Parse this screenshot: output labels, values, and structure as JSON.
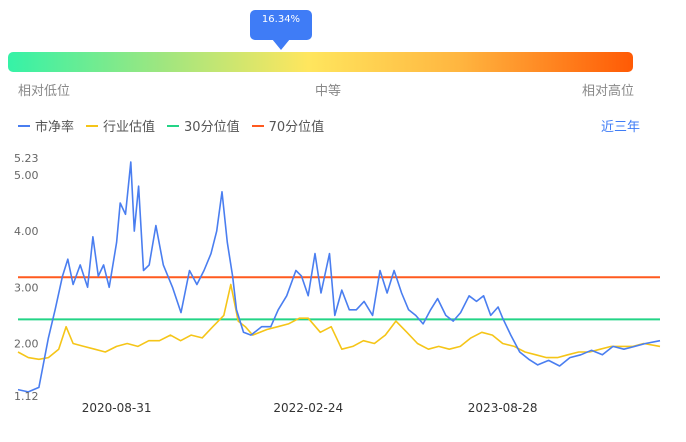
{
  "indicator": {
    "value_label": "16.34%",
    "percentile": 0.1634,
    "low_label": "相对低位",
    "mid_label": "中等",
    "high_label": "相对高位"
  },
  "legend": [
    {
      "label": "市净率",
      "color": "#4a7ef0"
    },
    {
      "label": "行业估值",
      "color": "#f5c518"
    },
    {
      "label": "30分位值",
      "color": "#23d486"
    },
    {
      "label": "70分位值",
      "color": "#ff5a1f"
    }
  ],
  "period_label": "近三年",
  "chart_data": {
    "type": "line",
    "title": "",
    "xlabel": "",
    "ylabel": "",
    "x_range": [
      "2019-11-26",
      "2024-11-15"
    ],
    "x_tick_labels": [
      "2020-08-31",
      "2022-02-24",
      "2023-08-28"
    ],
    "y_tick_labels": [
      "1.12",
      "2.00",
      "3.00",
      "4.00",
      "5.00",
      "5.23"
    ],
    "ylim": [
      1.12,
      5.23
    ],
    "grid": false,
    "series": [
      {
        "name": "市净率",
        "color": "#4a7ef0",
        "points": [
          [
            "2019-11-26",
            1.18
          ],
          [
            "2019-12-25",
            1.14
          ],
          [
            "2020-01-24",
            1.22
          ],
          [
            "2020-02-20",
            2.1
          ],
          [
            "2020-03-10",
            2.6
          ],
          [
            "2020-03-31",
            3.2
          ],
          [
            "2020-04-15",
            3.5
          ],
          [
            "2020-04-30",
            3.05
          ],
          [
            "2020-05-20",
            3.4
          ],
          [
            "2020-06-10",
            3.0
          ],
          [
            "2020-06-25",
            3.9
          ],
          [
            "2020-07-10",
            3.2
          ],
          [
            "2020-07-25",
            3.4
          ],
          [
            "2020-08-10",
            3.0
          ],
          [
            "2020-08-31",
            3.8
          ],
          [
            "2020-09-10",
            4.5
          ],
          [
            "2020-09-25",
            4.3
          ],
          [
            "2020-10-10",
            5.23
          ],
          [
            "2020-10-20",
            4.0
          ],
          [
            "2020-11-01",
            4.8
          ],
          [
            "2020-11-15",
            3.3
          ],
          [
            "2020-12-01",
            3.4
          ],
          [
            "2020-12-20",
            4.1
          ],
          [
            "2021-01-10",
            3.4
          ],
          [
            "2021-02-05",
            3.0
          ],
          [
            "2021-03-01",
            2.55
          ],
          [
            "2021-03-25",
            3.3
          ],
          [
            "2021-04-15",
            3.05
          ],
          [
            "2021-05-05",
            3.3
          ],
          [
            "2021-05-25",
            3.6
          ],
          [
            "2021-06-10",
            4.0
          ],
          [
            "2021-06-25",
            4.7
          ],
          [
            "2021-07-10",
            3.8
          ],
          [
            "2021-07-25",
            3.2
          ],
          [
            "2021-08-05",
            2.6
          ],
          [
            "2021-08-25",
            2.2
          ],
          [
            "2021-09-15",
            2.15
          ],
          [
            "2021-10-15",
            2.3
          ],
          [
            "2021-11-10",
            2.3
          ],
          [
            "2021-12-01",
            2.6
          ],
          [
            "2021-12-25",
            2.85
          ],
          [
            "2022-01-20",
            3.3
          ],
          [
            "2022-02-05",
            3.2
          ],
          [
            "2022-02-24",
            2.85
          ],
          [
            "2022-03-15",
            3.6
          ],
          [
            "2022-04-01",
            2.9
          ],
          [
            "2022-04-25",
            3.6
          ],
          [
            "2022-05-10",
            2.5
          ],
          [
            "2022-05-30",
            2.95
          ],
          [
            "2022-06-20",
            2.6
          ],
          [
            "2022-07-10",
            2.6
          ],
          [
            "2022-08-01",
            2.75
          ],
          [
            "2022-08-25",
            2.5
          ],
          [
            "2022-09-15",
            3.3
          ],
          [
            "2022-10-05",
            2.9
          ],
          [
            "2022-10-25",
            3.3
          ],
          [
            "2022-11-15",
            2.9
          ],
          [
            "2022-12-05",
            2.6
          ],
          [
            "2022-12-25",
            2.5
          ],
          [
            "2023-01-15",
            2.35
          ],
          [
            "2023-02-05",
            2.6
          ],
          [
            "2023-02-25",
            2.8
          ],
          [
            "2023-03-20",
            2.5
          ],
          [
            "2023-04-10",
            2.4
          ],
          [
            "2023-05-01",
            2.55
          ],
          [
            "2023-05-25",
            2.85
          ],
          [
            "2023-06-15",
            2.75
          ],
          [
            "2023-07-05",
            2.85
          ],
          [
            "2023-07-25",
            2.5
          ],
          [
            "2023-08-15",
            2.65
          ],
          [
            "2023-08-28",
            2.45
          ],
          [
            "2023-09-20",
            2.15
          ],
          [
            "2023-10-15",
            1.85
          ],
          [
            "2023-11-10",
            1.72
          ],
          [
            "2023-12-05",
            1.62
          ],
          [
            "2024-01-05",
            1.7
          ],
          [
            "2024-02-05",
            1.6
          ],
          [
            "2024-03-05",
            1.75
          ],
          [
            "2024-04-05",
            1.8
          ],
          [
            "2024-05-05",
            1.88
          ],
          [
            "2024-06-05",
            1.8
          ],
          [
            "2024-07-05",
            1.95
          ],
          [
            "2024-08-05",
            1.9
          ],
          [
            "2024-09-05",
            1.95
          ],
          [
            "2024-10-05",
            2.0
          ],
          [
            "2024-11-15",
            2.05
          ]
        ]
      },
      {
        "name": "行业估值",
        "color": "#f5c518",
        "points": [
          [
            "2019-11-26",
            1.85
          ],
          [
            "2019-12-25",
            1.75
          ],
          [
            "2020-01-24",
            1.72
          ],
          [
            "2020-02-20",
            1.75
          ],
          [
            "2020-03-20",
            1.9
          ],
          [
            "2020-04-10",
            2.3
          ],
          [
            "2020-04-30",
            2.0
          ],
          [
            "2020-05-30",
            1.95
          ],
          [
            "2020-06-30",
            1.9
          ],
          [
            "2020-07-30",
            1.85
          ],
          [
            "2020-08-31",
            1.95
          ],
          [
            "2020-09-30",
            2.0
          ],
          [
            "2020-10-30",
            1.95
          ],
          [
            "2020-11-30",
            2.05
          ],
          [
            "2020-12-30",
            2.05
          ],
          [
            "2021-01-30",
            2.15
          ],
          [
            "2021-02-28",
            2.05
          ],
          [
            "2021-03-30",
            2.15
          ],
          [
            "2021-04-30",
            2.1
          ],
          [
            "2021-05-30",
            2.3
          ],
          [
            "2021-06-30",
            2.5
          ],
          [
            "2021-07-20",
            3.05
          ],
          [
            "2021-08-10",
            2.4
          ],
          [
            "2021-08-30",
            2.3
          ],
          [
            "2021-09-20",
            2.15
          ],
          [
            "2021-10-30",
            2.25
          ],
          [
            "2021-11-30",
            2.3
          ],
          [
            "2021-12-30",
            2.35
          ],
          [
            "2022-01-30",
            2.45
          ],
          [
            "2022-02-24",
            2.45
          ],
          [
            "2022-03-30",
            2.2
          ],
          [
            "2022-04-30",
            2.3
          ],
          [
            "2022-05-30",
            1.9
          ],
          [
            "2022-06-30",
            1.95
          ],
          [
            "2022-07-30",
            2.05
          ],
          [
            "2022-08-30",
            2.0
          ],
          [
            "2022-09-30",
            2.15
          ],
          [
            "2022-10-30",
            2.4
          ],
          [
            "2022-11-30",
            2.2
          ],
          [
            "2022-12-30",
            2.0
          ],
          [
            "2023-01-30",
            1.9
          ],
          [
            "2023-02-28",
            1.95
          ],
          [
            "2023-03-30",
            1.9
          ],
          [
            "2023-04-30",
            1.95
          ],
          [
            "2023-05-30",
            2.1
          ],
          [
            "2023-06-30",
            2.2
          ],
          [
            "2023-07-30",
            2.15
          ],
          [
            "2023-08-28",
            2.0
          ],
          [
            "2023-09-30",
            1.95
          ],
          [
            "2023-10-30",
            1.85
          ],
          [
            "2023-11-30",
            1.8
          ],
          [
            "2023-12-30",
            1.75
          ],
          [
            "2024-01-30",
            1.75
          ],
          [
            "2024-02-28",
            1.8
          ],
          [
            "2024-03-30",
            1.85
          ],
          [
            "2024-04-30",
            1.85
          ],
          [
            "2024-05-30",
            1.9
          ],
          [
            "2024-06-30",
            1.95
          ],
          [
            "2024-07-30",
            1.95
          ],
          [
            "2024-08-30",
            1.95
          ],
          [
            "2024-09-30",
            2.0
          ],
          [
            "2024-11-15",
            1.95
          ]
        ]
      }
    ],
    "reference_lines": [
      {
        "name": "30分位值",
        "value": 2.43,
        "color": "#23d486"
      },
      {
        "name": "70分位值",
        "value": 3.18,
        "color": "#ff5a1f"
      }
    ]
  }
}
